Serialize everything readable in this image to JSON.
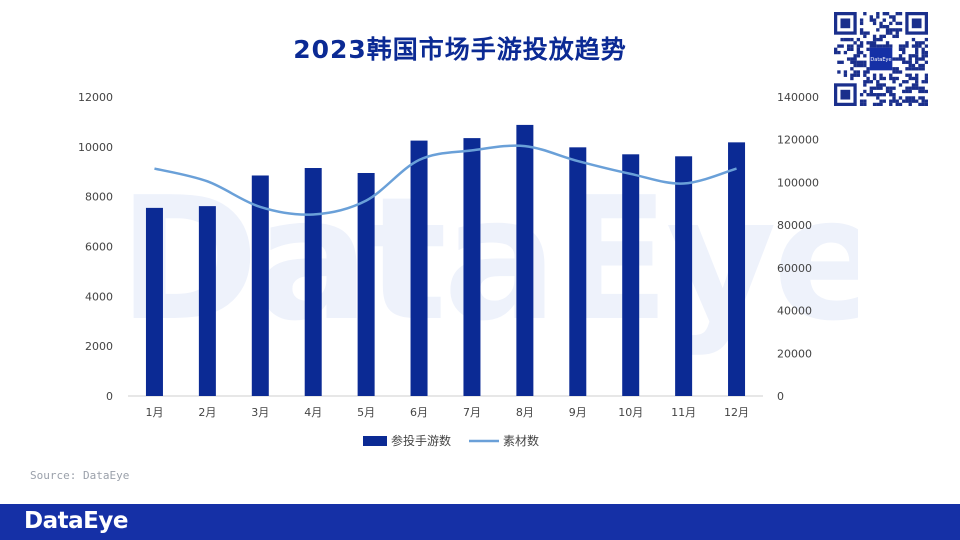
{
  "title": "2023韩国市场手游投放趋势",
  "source": "Source: DataEye",
  "footer_logo": "DataEye",
  "watermark": "DataEye",
  "qr_badge": "DataEye",
  "colors": {
    "bar": "#0b2a94",
    "line": "#6aa0d8",
    "footer": "#1530a6"
  },
  "chart_data": {
    "type": "bar",
    "title": "2023韩国市场手游投放趋势",
    "categories": [
      "1月",
      "2月",
      "3月",
      "4月",
      "5月",
      "6月",
      "7月",
      "8月",
      "9月",
      "10月",
      "11月",
      "12月"
    ],
    "series": [
      {
        "name": "参投手游数",
        "type": "bar",
        "axis": "left",
        "values": [
          7550,
          7620,
          8850,
          9150,
          8950,
          10250,
          10350,
          10880,
          9980,
          9700,
          9620,
          10180
        ]
      },
      {
        "name": "素材数",
        "type": "line",
        "axis": "right",
        "values": [
          106500,
          100500,
          88500,
          85000,
          91500,
          110500,
          115000,
          117000,
          110000,
          104000,
          99500,
          106500
        ]
      }
    ],
    "y_left": {
      "range": [
        0,
        12000
      ],
      "ticks": [
        "0",
        "2000",
        "4000",
        "6000",
        "8000",
        "10000",
        "12000"
      ]
    },
    "y_right": {
      "range": [
        0,
        140000
      ],
      "ticks": [
        "0",
        "20000",
        "40000",
        "60000",
        "80000",
        "100000",
        "120000",
        "140000"
      ]
    },
    "grid": false,
    "legend": "bottom"
  }
}
